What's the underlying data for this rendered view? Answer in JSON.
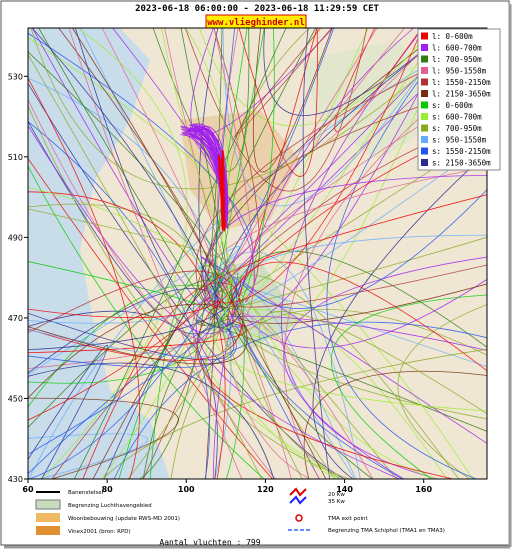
{
  "header": {
    "title": "2023-06-18 06:00:00 - 2023-06-18 11:29:59 CET",
    "site": "www.vlieghinder.nl"
  },
  "map": {
    "xlim": [
      60,
      176
    ],
    "ylim": [
      430,
      542
    ],
    "xticks": [
      60,
      80,
      100,
      120,
      140,
      160
    ],
    "yticks": [
      430,
      450,
      470,
      490,
      510,
      530
    ],
    "legend": [
      {
        "label": "l: 0-600m",
        "color": "#ee0000"
      },
      {
        "label": "l: 600-700m",
        "color": "#a020f0"
      },
      {
        "label": "l: 700-950m",
        "color": "#2e7d10"
      },
      {
        "label": "l: 950-1550m",
        "color": "#e06090"
      },
      {
        "label": "l: 1550-2150m",
        "color": "#b03030"
      },
      {
        "label": "l: 2150-3650m",
        "color": "#7a2a10"
      },
      {
        "label": "s: 0-600m",
        "color": "#00cc00"
      },
      {
        "label": "s: 600-700m",
        "color": "#99ee33"
      },
      {
        "label": "s: 700-950m",
        "color": "#88aa22"
      },
      {
        "label": "s: 950-1550m",
        "color": "#66aaff"
      },
      {
        "label": "s: 1550-2150m",
        "color": "#2255ee"
      },
      {
        "label": "s: 2150-3650m",
        "color": "#2a2a90"
      }
    ]
  },
  "footer_legend": {
    "runways": "Banenstelsel",
    "airport": "Begrenzing Luchthavengebied",
    "housing": "Woonbebouwing (update RWS-MD 2001)",
    "vinex": "Vinex2001 (bron: RPD)",
    "kw20": "20 Kw",
    "kw35": "35 Kw",
    "exit": "TMA exit point",
    "tma": "Begrenzing TMA Schiphol  (TMA1 en TMA3)"
  },
  "footer": "Aantal vluchten : 799"
}
